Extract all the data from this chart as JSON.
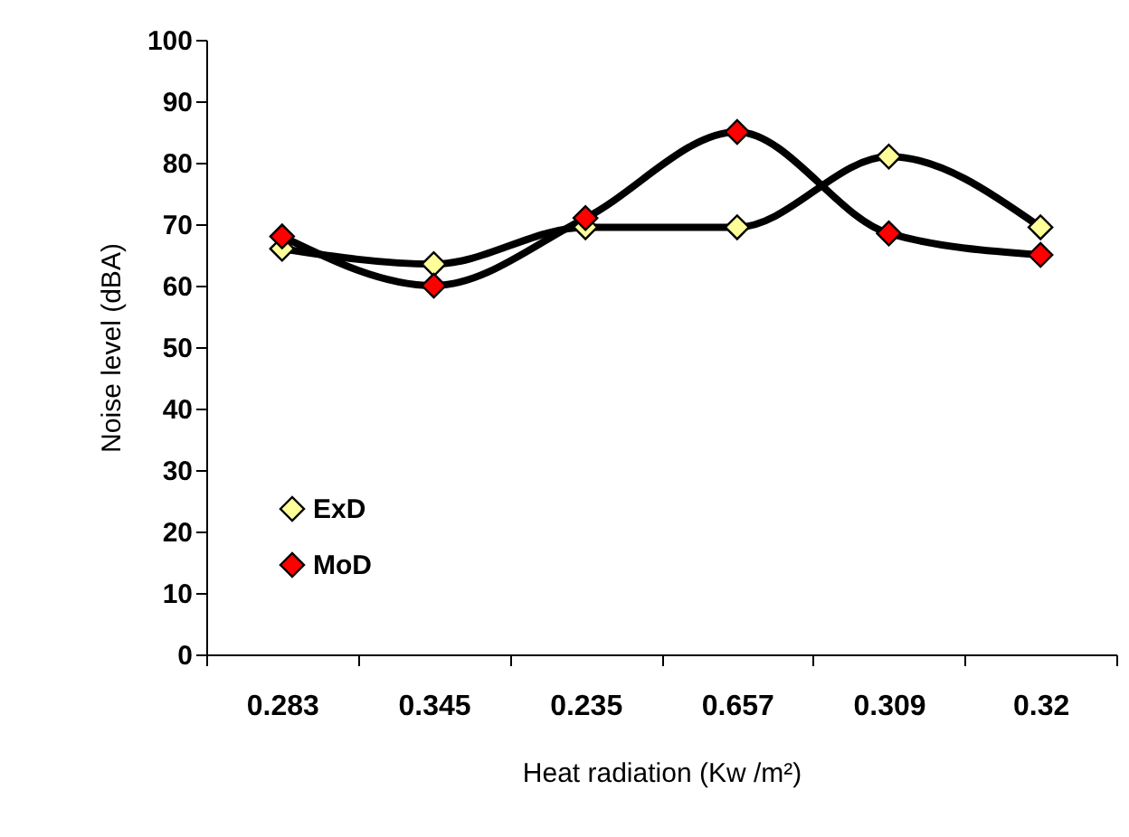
{
  "chart_data": {
    "type": "line",
    "xlabel": "Heat radiation (Kw /m²)",
    "ylabel": "Noise level (dBA)",
    "categories": [
      "0.283",
      "0.345",
      "0.235",
      "0.657",
      "0.309",
      "0.32"
    ],
    "series": [
      {
        "name": "ExD",
        "color": "#ffff99",
        "values": [
          66,
          63.5,
          69.5,
          69.5,
          81,
          69.5
        ]
      },
      {
        "name": "MoD",
        "color": "#ff0000",
        "values": [
          68,
          60,
          71,
          85,
          68.5,
          65
        ]
      }
    ],
    "ylim": [
      0,
      100
    ],
    "yticks": [
      0,
      10,
      20,
      30,
      40,
      50,
      60,
      70,
      80,
      90,
      100
    ],
    "grid": false,
    "legend": "bottom left",
    "marker": "diamond",
    "line_style": "solid"
  }
}
